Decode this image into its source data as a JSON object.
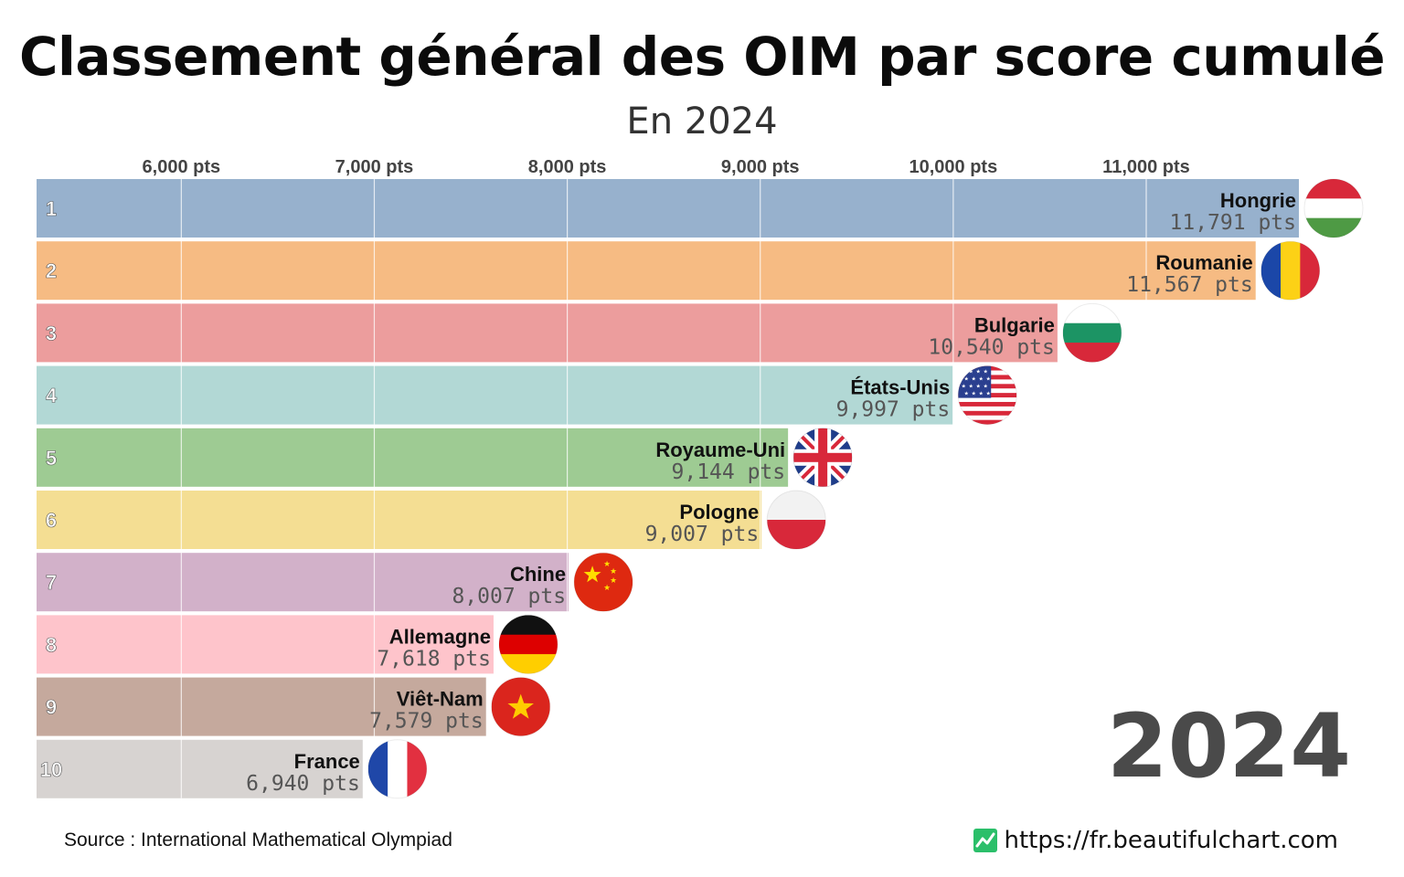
{
  "header": {
    "title": "Classement général des OIM par score cumulé",
    "subtitle": "En 2024"
  },
  "footer": {
    "source": "Source : International Mathematical Olympiad",
    "website": "https://fr.beautifulchart.com",
    "website_icon": "chart-line-icon"
  },
  "chart_data": {
    "type": "bar",
    "orientation": "horizontal",
    "year_label": "2024",
    "value_suffix": " pts",
    "axis_ticks": [
      6000,
      7000,
      8000,
      9000,
      10000,
      11000
    ],
    "axis_tick_labels": [
      "6,000 pts",
      "7,000 pts",
      "8,000 pts",
      "9,000 pts",
      "10,000 pts",
      "11,000 pts"
    ],
    "xlim": [
      5250,
      11791
    ],
    "grid": true,
    "bars": [
      {
        "rank": "1",
        "name": "Hongrie",
        "value": 11791,
        "value_label": "11,791 pts",
        "color": "#97b1cd",
        "flag": "hungary-flag-icon"
      },
      {
        "rank": "2",
        "name": "Roumanie",
        "value": 11567,
        "value_label": "11,567 pts",
        "color": "#f6bb83",
        "flag": "romania-flag-icon"
      },
      {
        "rank": "3",
        "name": "Bulgarie",
        "value": 10540,
        "value_label": "10,540 pts",
        "color": "#ec9d9d",
        "flag": "bulgaria-flag-icon"
      },
      {
        "rank": "4",
        "name": "États-Unis",
        "value": 9997,
        "value_label": "9,997 pts",
        "color": "#b2d8d5",
        "flag": "usa-flag-icon"
      },
      {
        "rank": "5",
        "name": "Royaume-Uni",
        "value": 9144,
        "value_label": "9,144 pts",
        "color": "#9ecb93",
        "flag": "uk-flag-icon"
      },
      {
        "rank": "6",
        "name": "Pologne",
        "value": 9007,
        "value_label": "9,007 pts",
        "color": "#f4de93",
        "flag": "poland-flag-icon"
      },
      {
        "rank": "7",
        "name": "Chine",
        "value": 8007,
        "value_label": "8,007 pts",
        "color": "#d2b1c9",
        "flag": "china-flag-icon"
      },
      {
        "rank": "8",
        "name": "Allemagne",
        "value": 7618,
        "value_label": "7,618 pts",
        "color": "#fec4cb",
        "flag": "germany-flag-icon"
      },
      {
        "rank": "9",
        "name": "Viêt-Nam",
        "value": 7579,
        "value_label": "7,579 pts",
        "color": "#c5a99d",
        "flag": "vietnam-flag-icon"
      },
      {
        "rank": "10",
        "name": "France",
        "value": 6940,
        "value_label": "6,940 pts",
        "color": "#d7d3d1",
        "flag": "france-flag-icon"
      }
    ]
  }
}
